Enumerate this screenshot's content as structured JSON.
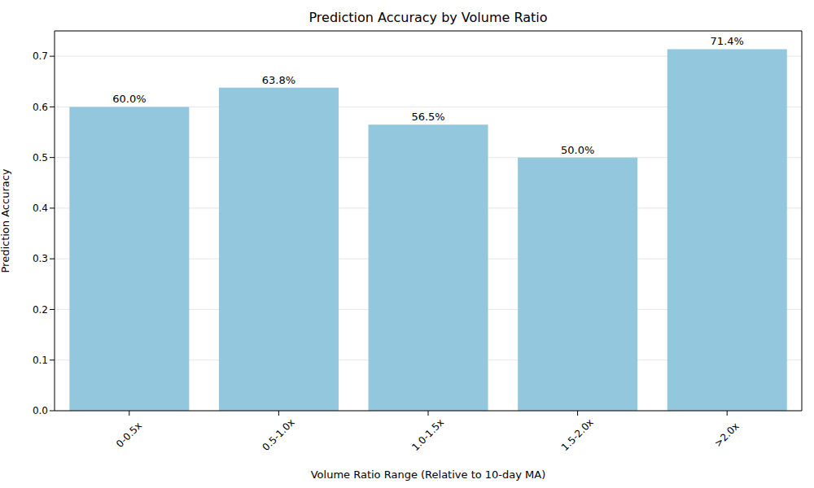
{
  "chart_data": {
    "type": "bar",
    "title": "Prediction Accuracy by Volume Ratio",
    "x_label": "Volume Ratio Range (Relative to 10-day MA)",
    "y_label": "Prediction Accuracy",
    "categories": [
      "0-0.5x",
      "0.5-1.0x",
      "1.0-1.5x",
      "1.5-2.0x",
      ">2.0x"
    ],
    "values": [
      0.6,
      0.638,
      0.565,
      0.5,
      0.714
    ],
    "value_labels": [
      "60.0%",
      "63.8%",
      "56.5%",
      "50.0%",
      "71.4%"
    ],
    "data_labels": true,
    "color": "#93c7dd",
    "ylim": [
      0,
      0.75
    ],
    "yticks": [
      {
        "value": 0,
        "label": "0.0"
      },
      0.1,
      0.2,
      0.3,
      0.4,
      0.5,
      0.6,
      0.7
    ],
    "grid": true
  }
}
